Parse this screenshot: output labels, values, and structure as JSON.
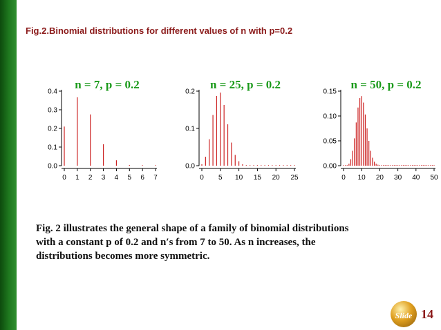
{
  "figure_title": "Fig.2.Binomial distributions for different values of n with p=0.2",
  "caption_lines": [
    "Fig. 2 illustrates the general shape of a family of binomial distributions",
    "with a constant p of 0.2 and n′s from 7 to 50. As n increases, the",
    "distributions  becomes more symmetric."
  ],
  "slide": {
    "badge_text": "Slide",
    "number": "14"
  },
  "colors": {
    "bars": "#cc2222",
    "title_green": "#1a9a1a",
    "heading_red": "#8b1a1a",
    "sidebar": "#1f7a1f"
  },
  "chart_data": [
    {
      "type": "bar",
      "title": "n = 7,   p = 0.2",
      "n": 7,
      "p": 0.2,
      "x": [
        0,
        1,
        2,
        3,
        4,
        5,
        6,
        7
      ],
      "values": [
        0.21,
        0.367,
        0.275,
        0.115,
        0.029,
        0.004,
        0.0003,
        1e-05
      ],
      "xlim": [
        0,
        7
      ],
      "ylim": [
        0,
        0.4
      ],
      "xticks": [
        "0",
        "1",
        "2",
        "3",
        "4",
        "5",
        "6",
        "7"
      ],
      "yticks": [
        "0.0",
        "0.1",
        "0.2",
        "0.3",
        "0.4"
      ]
    },
    {
      "type": "bar",
      "title": "n = 25,  p = 0.2",
      "n": 25,
      "p": 0.2,
      "x": [
        0,
        1,
        2,
        3,
        4,
        5,
        6,
        7,
        8,
        9,
        10,
        11,
        12,
        13,
        14,
        15,
        16,
        17,
        18,
        19,
        20,
        21,
        22,
        23,
        24,
        25
      ],
      "values": [
        0.004,
        0.024,
        0.071,
        0.136,
        0.187,
        0.196,
        0.163,
        0.111,
        0.062,
        0.029,
        0.012,
        0.004,
        0.001,
        0.0003,
        0.0001,
        2e-05,
        0,
        0,
        0,
        0,
        0,
        0,
        0,
        0,
        0,
        0
      ],
      "xlim": [
        0,
        25
      ],
      "ylim": [
        0,
        0.2
      ],
      "xticks": [
        "0",
        "5",
        "10",
        "15",
        "20",
        "25"
      ],
      "yticks": [
        "0.0",
        "0.1",
        "0.2"
      ]
    },
    {
      "type": "bar",
      "title": "n = 50,  p = 0.2",
      "n": 50,
      "p": 0.2,
      "x": [
        0,
        1,
        2,
        3,
        4,
        5,
        6,
        7,
        8,
        9,
        10,
        11,
        12,
        13,
        14,
        15,
        16,
        17,
        18,
        19,
        20,
        21,
        22,
        23,
        24,
        25,
        26,
        27,
        28,
        29,
        30,
        31,
        32,
        33,
        34,
        35,
        36,
        37,
        38,
        39,
        40,
        41,
        42,
        43,
        44,
        45,
        46,
        47,
        48,
        49,
        50
      ],
      "values": [
        1e-05,
        0.0002,
        0.001,
        0.004,
        0.013,
        0.03,
        0.055,
        0.087,
        0.117,
        0.136,
        0.14,
        0.127,
        0.103,
        0.075,
        0.05,
        0.03,
        0.016,
        0.008,
        0.004,
        0.002,
        0.001,
        0.0004,
        0.0001,
        4e-05,
        1e-05,
        0,
        0,
        0,
        0,
        0,
        0,
        0,
        0,
        0,
        0,
        0,
        0,
        0,
        0,
        0,
        0,
        0,
        0,
        0,
        0,
        0,
        0,
        0,
        0,
        0,
        0
      ],
      "xlim": [
        0,
        50
      ],
      "ylim": [
        0,
        0.15
      ],
      "xticks": [
        "0",
        "10",
        "20",
        "30",
        "40",
        "50"
      ],
      "yticks": [
        "0.00",
        "0.05",
        "0.10",
        "0.15"
      ]
    }
  ]
}
